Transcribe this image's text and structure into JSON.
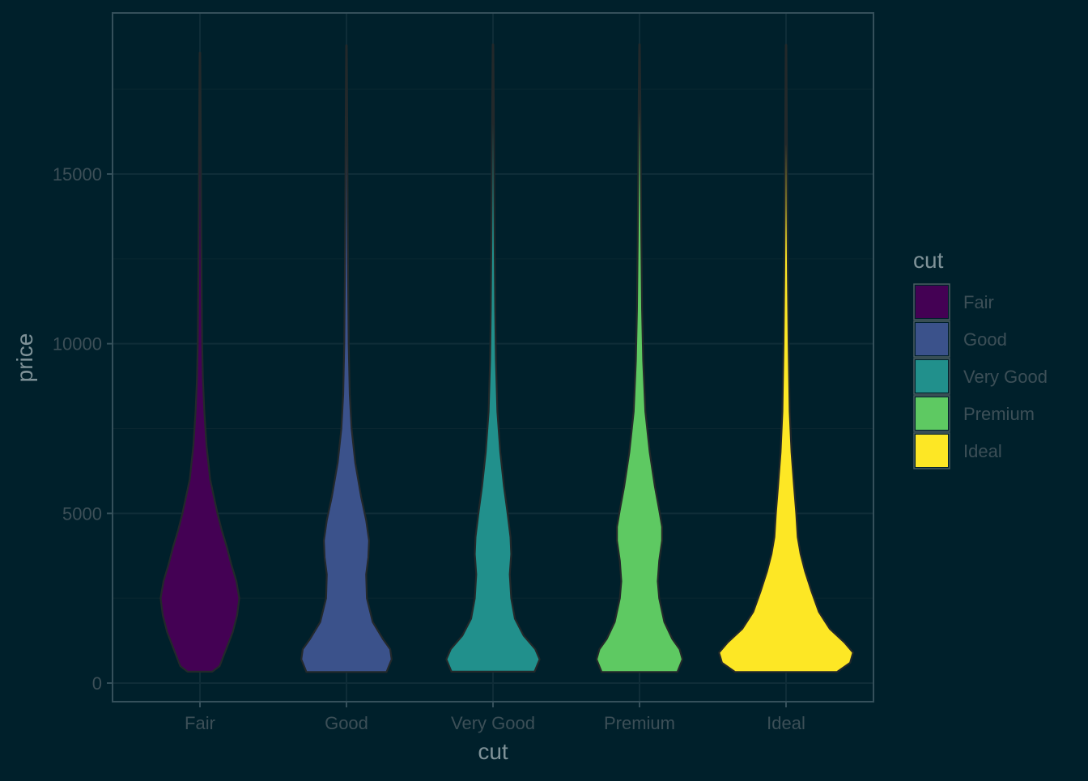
{
  "chart_data": {
    "type": "violin",
    "title": "",
    "xlabel": "cut",
    "ylabel": "price",
    "categories": [
      "Fair",
      "Good",
      "Very Good",
      "Premium",
      "Ideal"
    ],
    "ylim": [
      -600,
      19800
    ],
    "y_ticks": [
      0,
      5000,
      10000,
      15000
    ],
    "y_tick_labels": [
      "0",
      "5000",
      "10000",
      "15000"
    ],
    "grid": true,
    "legend": {
      "title": "cut",
      "position": "right",
      "items": [
        {
          "label": "Fair",
          "color": "#440154"
        },
        {
          "label": "Good",
          "color": "#3b528b"
        },
        {
          "label": "Very Good",
          "color": "#21908c"
        },
        {
          "label": "Premium",
          "color": "#5ec962"
        },
        {
          "label": "Ideal",
          "color": "#fde725"
        }
      ]
    },
    "series": [
      {
        "name": "Fair",
        "color": "#440154",
        "range": [
          337,
          18574
        ],
        "density_width": [
          [
            337,
            0.17
          ],
          [
            500,
            0.27
          ],
          [
            1000,
            0.36
          ],
          [
            1500,
            0.45
          ],
          [
            2000,
            0.51
          ],
          [
            2500,
            0.54
          ],
          [
            3000,
            0.5
          ],
          [
            3500,
            0.43
          ],
          [
            4000,
            0.37
          ],
          [
            4500,
            0.3
          ],
          [
            5000,
            0.24
          ],
          [
            5500,
            0.19
          ],
          [
            6000,
            0.14
          ],
          [
            7000,
            0.09
          ],
          [
            8000,
            0.06
          ],
          [
            9000,
            0.04
          ],
          [
            10000,
            0.03
          ],
          [
            12000,
            0.022
          ],
          [
            14000,
            0.016
          ],
          [
            16000,
            0.012
          ],
          [
            18574,
            0.004
          ]
        ]
      },
      {
        "name": "Good",
        "color": "#3b528b",
        "range": [
          327,
          18788
        ],
        "density_width": [
          [
            327,
            0.55
          ],
          [
            700,
            0.62
          ],
          [
            1000,
            0.6
          ],
          [
            1300,
            0.5
          ],
          [
            1800,
            0.36
          ],
          [
            2500,
            0.28
          ],
          [
            3200,
            0.27
          ],
          [
            3700,
            0.3
          ],
          [
            4200,
            0.31
          ],
          [
            4800,
            0.27
          ],
          [
            5500,
            0.2
          ],
          [
            6500,
            0.12
          ],
          [
            7500,
            0.07
          ],
          [
            8500,
            0.045
          ],
          [
            10000,
            0.03
          ],
          [
            12000,
            0.022
          ],
          [
            14000,
            0.016
          ],
          [
            16000,
            0.012
          ],
          [
            18788,
            0.004
          ]
        ]
      },
      {
        "name": "Very Good",
        "color": "#21908c",
        "range": [
          336,
          18818
        ],
        "density_width": [
          [
            336,
            0.57
          ],
          [
            700,
            0.64
          ],
          [
            1000,
            0.58
          ],
          [
            1400,
            0.42
          ],
          [
            1900,
            0.3
          ],
          [
            2500,
            0.25
          ],
          [
            3200,
            0.23
          ],
          [
            3800,
            0.25
          ],
          [
            4300,
            0.24
          ],
          [
            5000,
            0.2
          ],
          [
            5800,
            0.15
          ],
          [
            6800,
            0.1
          ],
          [
            8000,
            0.06
          ],
          [
            9500,
            0.04
          ],
          [
            11000,
            0.03
          ],
          [
            13000,
            0.022
          ],
          [
            15000,
            0.016
          ],
          [
            17000,
            0.011
          ],
          [
            18818,
            0.004
          ]
        ]
      },
      {
        "name": "Premium",
        "color": "#5ec962",
        "range": [
          326,
          18823
        ],
        "density_width": [
          [
            326,
            0.52
          ],
          [
            700,
            0.59
          ],
          [
            1000,
            0.55
          ],
          [
            1300,
            0.45
          ],
          [
            1800,
            0.34
          ],
          [
            2500,
            0.27
          ],
          [
            3000,
            0.25
          ],
          [
            3600,
            0.27
          ],
          [
            4200,
            0.31
          ],
          [
            4600,
            0.31
          ],
          [
            5100,
            0.27
          ],
          [
            5800,
            0.21
          ],
          [
            6800,
            0.14
          ],
          [
            8000,
            0.08
          ],
          [
            9500,
            0.05
          ],
          [
            11000,
            0.035
          ],
          [
            13000,
            0.025
          ],
          [
            15000,
            0.018
          ],
          [
            17000,
            0.012
          ],
          [
            18823,
            0.004
          ]
        ]
      },
      {
        "name": "Ideal",
        "color": "#fde725",
        "range": [
          326,
          18806
        ],
        "density_width": [
          [
            326,
            0.7
          ],
          [
            600,
            0.88
          ],
          [
            900,
            0.92
          ],
          [
            1200,
            0.8
          ],
          [
            1600,
            0.6
          ],
          [
            2100,
            0.45
          ],
          [
            2700,
            0.35
          ],
          [
            3300,
            0.26
          ],
          [
            3800,
            0.2
          ],
          [
            4300,
            0.16
          ],
          [
            5000,
            0.14
          ],
          [
            5800,
            0.11
          ],
          [
            6800,
            0.075
          ],
          [
            8000,
            0.05
          ],
          [
            10000,
            0.035
          ],
          [
            12000,
            0.025
          ],
          [
            14000,
            0.017
          ],
          [
            16000,
            0.012
          ],
          [
            18806,
            0.004
          ]
        ]
      }
    ]
  }
}
